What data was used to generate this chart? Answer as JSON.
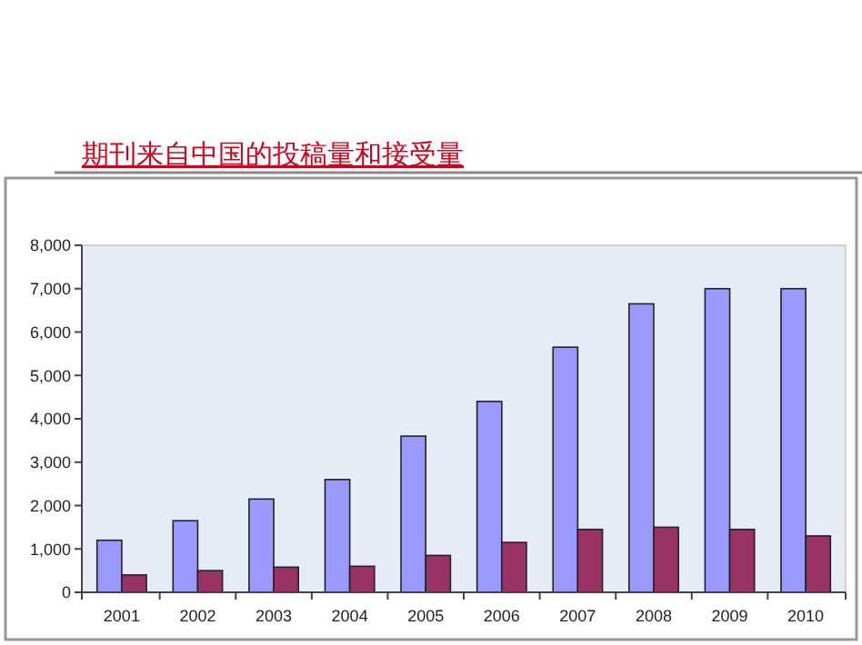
{
  "chart_data": {
    "type": "bar",
    "title": "期刊来自中国的投稿量和接受量",
    "categories": [
      "2001",
      "2002",
      "2003",
      "2004",
      "2005",
      "2006",
      "2007",
      "2008",
      "2009",
      "2010"
    ],
    "series": [
      {
        "color": "#9999ff",
        "values": [
          1200,
          1650,
          2150,
          2600,
          3600,
          4400,
          5650,
          6650,
          7000,
          7000
        ]
      },
      {
        "color": "#993366",
        "values": [
          400,
          500,
          580,
          600,
          850,
          1150,
          1450,
          1500,
          1450,
          1300
        ]
      }
    ],
    "ylim": [
      0,
      8000
    ],
    "yticks": [
      {
        "value": 0,
        "label": "0"
      },
      {
        "value": 1000,
        "label": "1,000"
      },
      {
        "value": 2000,
        "label": "2,000"
      },
      {
        "value": 3000,
        "label": "3,000"
      },
      {
        "value": 4000,
        "label": "4,000"
      },
      {
        "value": 5000,
        "label": "5,000"
      },
      {
        "value": 6000,
        "label": "6,000"
      },
      {
        "value": 7000,
        "label": "7,000"
      },
      {
        "value": 8000,
        "label": "8,000"
      }
    ],
    "grid": false
  }
}
